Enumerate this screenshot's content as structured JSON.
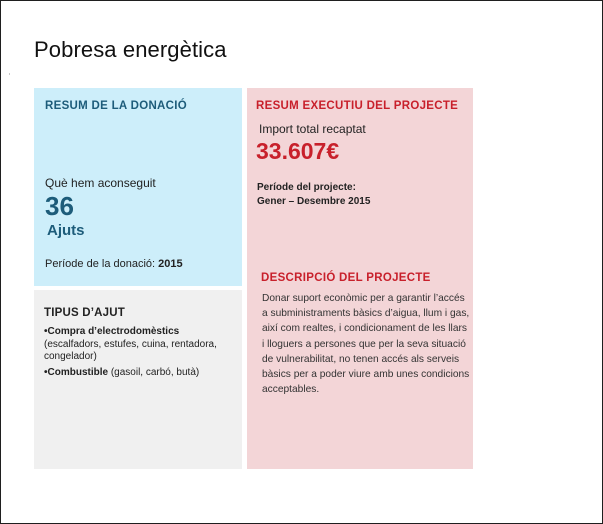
{
  "page": {
    "title": "Pobresa energètica"
  },
  "donation_summary": {
    "heading": "RESUM DE LA DONACIÓ",
    "achieved_label": "Què hem aconseguit",
    "achieved_value": "36",
    "achieved_unit": "Ajuts",
    "period_label": "Període de la donació:",
    "period_value": "2015"
  },
  "aid_types": {
    "heading": "TIPUS D’AJUT",
    "items": [
      {
        "bold": "•Compra d’electrodomèstics",
        "detail": "(escalfadors, estufes, cuina, rentadora, congelador)"
      },
      {
        "bold": "•Combustible",
        "detail": "(gasoil, carbó, butà)"
      }
    ]
  },
  "project_summary": {
    "heading": "RESUM EXECUTIU DEL PROJECTE",
    "import_label": "Import total recaptat",
    "import_value": "33.607€",
    "period_label": "Període del projecte:",
    "period_value": "Gener – Desembre 2015"
  },
  "project_description": {
    "heading": "DESCRIPCIÓ DEL PROJECTE",
    "text": "Donar suport econòmic per a garantir l’accés a subministraments bàsics d’aigua, llum i gas, així com realtes, i condicionament de les llars i lloguers a persones que per la seva situació de vulnerabilitat, no tenen accés als serveis bàsics per a poder viure amb unes condicions acceptables."
  },
  "colors": {
    "blue_panel": "#cdeefa",
    "grey_panel": "#f0f0f0",
    "pink_panel": "#f3d5d7",
    "accent_blue": "#1d5c7a",
    "accent_red": "#c8202b"
  }
}
